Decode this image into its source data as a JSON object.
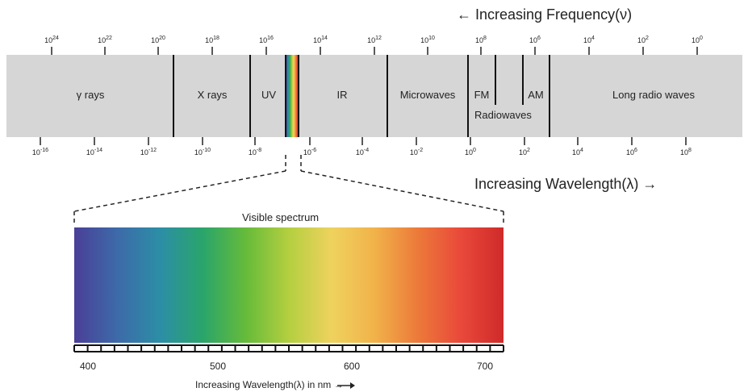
{
  "frequency_axis": {
    "title": "← Increasing Frequency(ν)",
    "ticks": [
      {
        "base": "10",
        "exp": "24"
      },
      {
        "base": "10",
        "exp": "22"
      },
      {
        "base": "10",
        "exp": "20"
      },
      {
        "base": "10",
        "exp": "18"
      },
      {
        "base": "10",
        "exp": "16"
      },
      {
        "base": "10",
        "exp": "14"
      },
      {
        "base": "10",
        "exp": "12"
      },
      {
        "base": "10",
        "exp": "10"
      },
      {
        "base": "10",
        "exp": "8"
      },
      {
        "base": "10",
        "exp": "6"
      },
      {
        "base": "10",
        "exp": "4"
      },
      {
        "base": "10",
        "exp": "2"
      },
      {
        "base": "10",
        "exp": "0"
      }
    ]
  },
  "wavelength_axis": {
    "title": "Increasing Wavelength(λ) →",
    "ticks": [
      {
        "base": "10",
        "exp": "-16"
      },
      {
        "base": "10",
        "exp": "-14"
      },
      {
        "base": "10",
        "exp": "-12"
      },
      {
        "base": "10",
        "exp": "-10"
      },
      {
        "base": "10",
        "exp": "-8"
      },
      {
        "base": "10",
        "exp": "-6"
      },
      {
        "base": "10",
        "exp": "-4"
      },
      {
        "base": "10",
        "exp": "-2"
      },
      {
        "base": "10",
        "exp": "0"
      },
      {
        "base": "10",
        "exp": "2"
      },
      {
        "base": "10",
        "exp": "4"
      },
      {
        "base": "10",
        "exp": "6"
      },
      {
        "base": "10",
        "exp": "8"
      }
    ]
  },
  "bands": [
    "γ rays",
    "X rays",
    "UV",
    "IR",
    "Microwaves",
    "FM",
    "AM",
    "Long radio waves"
  ],
  "radiowaves_label": "Radiowaves",
  "visible": {
    "title": "Visible spectrum",
    "axis_title": "Increasing Wavelength(λ) in nm  →",
    "tick_labels": [
      "400",
      "500",
      "600",
      "700"
    ]
  },
  "colors": {
    "band_background": "#d6d6d6",
    "divider": "#111111",
    "spectrum": [
      "#4a3f97",
      "#3d6aa9",
      "#2c8ea6",
      "#2aa56a",
      "#66bb3a",
      "#b4cf40",
      "#efd25e",
      "#f1b24a",
      "#ec7a3a",
      "#e9493a",
      "#cf2a2a"
    ]
  }
}
